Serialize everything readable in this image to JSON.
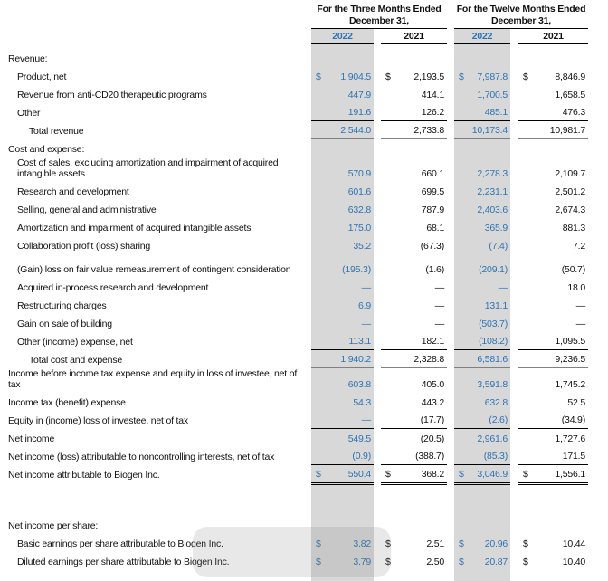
{
  "table": {
    "colors": {
      "accent_blue": "#2E74B5",
      "band_gray": "#D8D8D8",
      "total_rule_gray": "#808080"
    },
    "col_groups": [
      {
        "label": "For the Three Months Ended December 31,"
      },
      {
        "label": "For the Twelve Months Ended December 31,"
      }
    ],
    "years": [
      "2022",
      "2021",
      "2022",
      "2021"
    ],
    "rows": [
      {
        "label": "Revenue:",
        "type": "section",
        "indent": 0,
        "values": null
      },
      {
        "label": "Product, net",
        "type": "data",
        "indent": 1,
        "dollar": true,
        "values": [
          "1,904.5",
          "2,193.5",
          "7,987.8",
          "8,846.9"
        ]
      },
      {
        "label": "Revenue from anti-CD20 therapeutic programs",
        "type": "data",
        "indent": 1,
        "values": [
          "447.9",
          "414.1",
          "1,700.5",
          "1,658.5"
        ]
      },
      {
        "label": "Other",
        "type": "data",
        "indent": 1,
        "values": [
          "191.6",
          "126.2",
          "485.1",
          "476.3"
        ],
        "underline": "single"
      },
      {
        "label": "Total revenue",
        "type": "total",
        "indent": 2,
        "values": [
          "2,544.0",
          "2,733.8",
          "10,173.4",
          "10,981.7"
        ],
        "underline": "total"
      },
      {
        "label": "Cost and expense:",
        "type": "section",
        "indent": 0,
        "values": null
      },
      {
        "label": "Cost of sales, excluding amortization and impairment of acquired intangible assets",
        "type": "data",
        "indent": 1,
        "values": [
          "570.9",
          "660.1",
          "2,278.3",
          "2,109.7"
        ]
      },
      {
        "label": "Research and development",
        "type": "data",
        "indent": 1,
        "values": [
          "601.6",
          "699.5",
          "2,231.1",
          "2,501.2"
        ]
      },
      {
        "label": "Selling, general and administrative",
        "type": "data",
        "indent": 1,
        "values": [
          "632.8",
          "787.9",
          "2,403.6",
          "2,674.3"
        ]
      },
      {
        "label": "Amortization and impairment of acquired intangible assets",
        "type": "data",
        "indent": 1,
        "values": [
          "175.0",
          "68.1",
          "365.9",
          "881.3"
        ]
      },
      {
        "label": "Collaboration profit (loss) sharing",
        "type": "data",
        "indent": 1,
        "values": [
          "35.2",
          "(67.3)",
          "(7.4)",
          "7.2"
        ],
        "gap_after": 6
      },
      {
        "label": "(Gain) loss on fair value remeasurement of contingent consideration",
        "type": "data",
        "indent": 1,
        "values": [
          "(195.3)",
          "(1.6)",
          "(209.1)",
          "(50.7)"
        ]
      },
      {
        "label": "Acquired in-process research and development",
        "type": "data",
        "indent": 1,
        "values": [
          "—",
          "—",
          "—",
          "18.0"
        ]
      },
      {
        "label": "Restructuring charges",
        "type": "data",
        "indent": 1,
        "values": [
          "6.9",
          "—",
          "131.1",
          "—"
        ]
      },
      {
        "label": "Gain on sale of building",
        "type": "data",
        "indent": 1,
        "values": [
          "—",
          "—",
          "(503.7)",
          "—"
        ]
      },
      {
        "label": "Other (income) expense, net",
        "type": "data",
        "indent": 1,
        "values": [
          "113.1",
          "182.1",
          "(108.2)",
          "1,095.5"
        ],
        "underline": "single"
      },
      {
        "label": "Total cost and expense",
        "type": "total",
        "indent": 2,
        "values": [
          "1,940.2",
          "2,328.8",
          "6,581.6",
          "9,236.5"
        ],
        "underline": "total"
      },
      {
        "label": "Income before income tax expense and equity in loss of investee, net of tax",
        "type": "data",
        "indent": 0,
        "values": [
          "603.8",
          "405.0",
          "3,591.8",
          "1,745.2"
        ]
      },
      {
        "label": "Income tax (benefit) expense",
        "type": "data",
        "indent": 0,
        "values": [
          "54.3",
          "443.2",
          "632.8",
          "52.5"
        ]
      },
      {
        "label": "Equity in (income) loss of investee, net of tax",
        "type": "data",
        "indent": 0,
        "values": [
          "—",
          "(17.7)",
          "(2.6)",
          "(34.9)"
        ],
        "underline": "single"
      },
      {
        "label": "Net income",
        "type": "data",
        "indent": 0,
        "values": [
          "549.5",
          "(20.5)",
          "2,961.6",
          "1,727.6"
        ]
      },
      {
        "label": "Net income (loss) attributable to noncontrolling interests, net of tax",
        "type": "data",
        "indent": 0,
        "values": [
          "(0.9)",
          "(388.7)",
          "(85.3)",
          "171.5"
        ],
        "underline": "single"
      },
      {
        "label": "Net income attributable to Biogen Inc.",
        "type": "data",
        "indent": 0,
        "dollar": true,
        "values": [
          "550.4",
          "368.2",
          "3,046.9",
          "1,556.1"
        ],
        "underline": "double",
        "gap_after": 36
      },
      {
        "label": "Net income per share:",
        "type": "section",
        "indent": 0,
        "values": null
      },
      {
        "label": "Basic earnings per share attributable to Biogen Inc.",
        "type": "data",
        "indent": 1,
        "dollar": true,
        "values": [
          "3.82",
          "2.51",
          "20.96",
          "10.44"
        ]
      },
      {
        "label": "Diluted earnings per share attributable to Biogen Inc.",
        "type": "data",
        "indent": 1,
        "dollar": true,
        "values": [
          "3.79",
          "2.50",
          "20.87",
          "10.40"
        ]
      }
    ]
  }
}
